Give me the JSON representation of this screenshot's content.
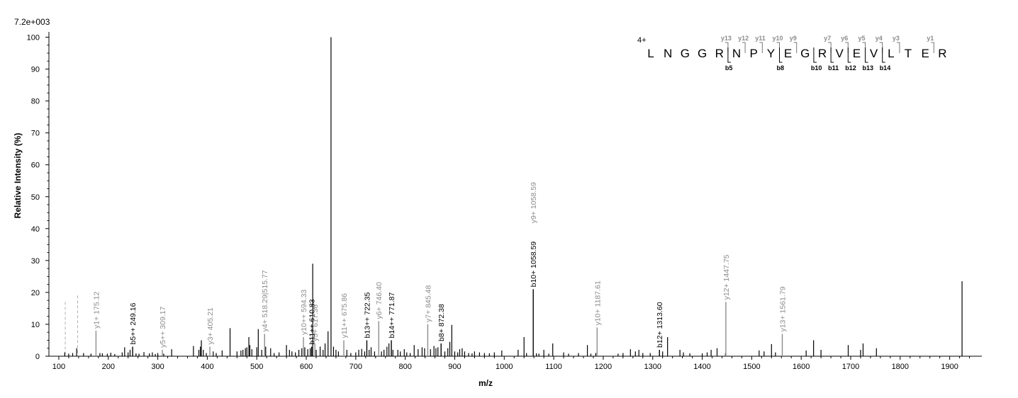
{
  "chart_data": {
    "type": "bar",
    "max_intensity_label": "7.2e+003",
    "xlabel": "m/z",
    "ylabel": "Relative   Intensity (%)",
    "xlim": [
      80,
      1965
    ],
    "ylim": [
      0,
      101
    ],
    "x_ticks": [
      100,
      200,
      300,
      400,
      500,
      600,
      700,
      800,
      900,
      1000,
      1100,
      1200,
      1300,
      1400,
      1500,
      1600,
      1700,
      1800,
      1900
    ],
    "y_ticks": [
      0,
      10,
      20,
      30,
      40,
      50,
      60,
      70,
      80,
      90,
      100
    ],
    "grid": false,
    "colors": {
      "b_ion": "#000000",
      "y_ion": "#8c8c8c",
      "unassigned": "#000000"
    },
    "annotated_peaks": [
      {
        "mz": 175.12,
        "intensity": 8,
        "label": "y1+ 175.12",
        "ion": "y"
      },
      {
        "mz": 249.16,
        "intensity": 3,
        "label": "b5++ 249.16",
        "ion": "b"
      },
      {
        "mz": 309.17,
        "intensity": 2,
        "label": "y5++ 309.17",
        "ion": "y"
      },
      {
        "mz": 405.21,
        "intensity": 3,
        "label": "y3+ 405.21",
        "ion": "y"
      },
      {
        "mz": 515.77,
        "intensity": 7,
        "label": "y4+ 518.29|515.77",
        "ion": "y"
      },
      {
        "mz": 594.33,
        "intensity": 6,
        "label": "y10++ 594.33",
        "ion": "y"
      },
      {
        "mz": 610.83,
        "intensity": 3,
        "label": "b11++ 610.83",
        "ion": "b"
      },
      {
        "mz": 617.36,
        "intensity": 4,
        "label": "y5+ 617.36",
        "ion": "y"
      },
      {
        "mz": 675.86,
        "intensity": 5,
        "label": "y11++ 675.86",
        "ion": "y"
      },
      {
        "mz": 722.35,
        "intensity": 5,
        "label": "b13++ 722.35",
        "ion": "b"
      },
      {
        "mz": 746.4,
        "intensity": 11,
        "label": "y6+ 746.40",
        "ion": "y"
      },
      {
        "mz": 771.87,
        "intensity": 5,
        "label": "b14++ 771.87",
        "ion": "b"
      },
      {
        "mz": 845.48,
        "intensity": 10,
        "label": "y7+ 845.48",
        "ion": "y"
      },
      {
        "mz": 872.38,
        "intensity": 4,
        "label": "b8+ 872.38",
        "ion": "b"
      },
      {
        "mz": 1058.59,
        "intensity": 21,
        "label": "b10+ 1058.59",
        "ion": "b"
      },
      {
        "mz": 1058.59,
        "intensity": 41,
        "label": "y9+ 1058.59",
        "ion": "y",
        "label_only": true
      },
      {
        "mz": 1187.61,
        "intensity": 9,
        "label": "y10+ 1187.61",
        "ion": "y"
      },
      {
        "mz": 1313.6,
        "intensity": 2,
        "label": "b12+ 1313.60",
        "ion": "b"
      },
      {
        "mz": 1447.75,
        "intensity": 17,
        "label": "y12+ 1447.75",
        "ion": "y"
      },
      {
        "mz": 1561.79,
        "intensity": 7,
        "label": "y13+ 1561.79",
        "ion": "y"
      }
    ],
    "unannotated_peaks": [
      [
        112,
        1.2
      ],
      [
        120,
        0.8
      ],
      [
        128,
        1.0
      ],
      [
        136,
        2.5
      ],
      [
        150,
        1.0
      ],
      [
        165,
        0.8
      ],
      [
        183,
        1.0
      ],
      [
        188,
        0.9
      ],
      [
        198,
        0.8
      ],
      [
        205,
        1.1
      ],
      [
        213,
        0.7
      ],
      [
        228,
        1.2
      ],
      [
        233,
        2.8
      ],
      [
        240,
        1.2
      ],
      [
        244,
        2.0
      ],
      [
        256,
        0.9
      ],
      [
        262,
        0.8
      ],
      [
        272,
        1.3
      ],
      [
        283,
        0.9
      ],
      [
        289,
        1.2
      ],
      [
        295,
        0.7
      ],
      [
        300,
        1.0
      ],
      [
        312,
        0.8
      ],
      [
        328,
        2.2
      ],
      [
        372,
        3.2
      ],
      [
        383,
        2.0
      ],
      [
        386,
        3.0
      ],
      [
        388,
        5.0
      ],
      [
        392,
        2.0
      ],
      [
        398,
        1.0
      ],
      [
        412,
        1.5
      ],
      [
        418,
        1.0
      ],
      [
        430,
        1.8
      ],
      [
        446,
        8.8
      ],
      [
        460,
        1.5
      ],
      [
        468,
        1.8
      ],
      [
        472,
        2.0
      ],
      [
        477,
        2.5
      ],
      [
        480,
        2.8
      ],
      [
        484,
        6.0
      ],
      [
        486,
        3.5
      ],
      [
        490,
        2.2
      ],
      [
        500,
        2.8
      ],
      [
        503,
        8.5
      ],
      [
        510,
        2.0
      ],
      [
        518,
        3.0
      ],
      [
        528,
        2.5
      ],
      [
        535,
        1.0
      ],
      [
        545,
        1.2
      ],
      [
        560,
        3.5
      ],
      [
        566,
        2.0
      ],
      [
        571,
        1.5
      ],
      [
        578,
        1.2
      ],
      [
        585,
        2.0
      ],
      [
        591,
        2.5
      ],
      [
        597,
        2.8
      ],
      [
        603,
        2.2
      ],
      [
        608,
        2.5
      ],
      [
        613,
        29.0
      ],
      [
        620,
        2.0
      ],
      [
        628,
        3.0
      ],
      [
        634,
        2.0
      ],
      [
        638,
        4.0
      ],
      [
        644,
        7.8
      ],
      [
        650,
        100.0
      ],
      [
        655,
        3.0
      ],
      [
        660,
        2.0
      ],
      [
        665,
        1.5
      ],
      [
        682,
        2.0
      ],
      [
        690,
        1.0
      ],
      [
        700,
        1.2
      ],
      [
        706,
        2.0
      ],
      [
        712,
        2.3
      ],
      [
        718,
        1.5
      ],
      [
        727,
        2.0
      ],
      [
        731,
        2.8
      ],
      [
        738,
        1.5
      ],
      [
        752,
        1.5
      ],
      [
        757,
        2.0
      ],
      [
        763,
        3.0
      ],
      [
        767,
        4.0
      ],
      [
        775,
        2.0
      ],
      [
        785,
        2.0
      ],
      [
        790,
        1.5
      ],
      [
        798,
        2.2
      ],
      [
        803,
        1.2
      ],
      [
        810,
        1.0
      ],
      [
        818,
        3.5
      ],
      [
        826,
        2.2
      ],
      [
        834,
        2.8
      ],
      [
        839,
        2.5
      ],
      [
        851,
        2.2
      ],
      [
        858,
        3.2
      ],
      [
        862,
        2.5
      ],
      [
        866,
        2.8
      ],
      [
        880,
        1.5
      ],
      [
        886,
        2.5
      ],
      [
        890,
        4.5
      ],
      [
        894,
        9.8
      ],
      [
        900,
        1.5
      ],
      [
        906,
        1.2
      ],
      [
        910,
        2.2
      ],
      [
        915,
        2.5
      ],
      [
        920,
        1.5
      ],
      [
        928,
        1.0
      ],
      [
        935,
        0.9
      ],
      [
        940,
        1.5
      ],
      [
        950,
        1.2
      ],
      [
        960,
        1.0
      ],
      [
        970,
        0.9
      ],
      [
        980,
        1.2
      ],
      [
        995,
        1.8
      ],
      [
        1028,
        2.0
      ],
      [
        1040,
        6.0
      ],
      [
        1045,
        1.0
      ],
      [
        1065,
        0.9
      ],
      [
        1070,
        0.8
      ],
      [
        1080,
        2.0
      ],
      [
        1090,
        0.8
      ],
      [
        1098,
        4.0
      ],
      [
        1120,
        1.2
      ],
      [
        1130,
        0.8
      ],
      [
        1150,
        1.0
      ],
      [
        1168,
        3.5
      ],
      [
        1175,
        0.8
      ],
      [
        1185,
        1.0
      ],
      [
        1230,
        0.8
      ],
      [
        1240,
        1.0
      ],
      [
        1255,
        2.2
      ],
      [
        1265,
        1.5
      ],
      [
        1272,
        2.0
      ],
      [
        1280,
        1.0
      ],
      [
        1295,
        1.0
      ],
      [
        1320,
        1.5
      ],
      [
        1330,
        6.0
      ],
      [
        1355,
        2.0
      ],
      [
        1362,
        1.2
      ],
      [
        1375,
        0.9
      ],
      [
        1400,
        0.9
      ],
      [
        1410,
        1.2
      ],
      [
        1418,
        2.0
      ],
      [
        1430,
        2.5
      ],
      [
        1447,
        1.0
      ],
      [
        1515,
        1.8
      ],
      [
        1525,
        1.5
      ],
      [
        1540,
        3.8
      ],
      [
        1548,
        1.2
      ],
      [
        1610,
        1.8
      ],
      [
        1625,
        5.0
      ],
      [
        1640,
        2.0
      ],
      [
        1695,
        3.5
      ],
      [
        1720,
        2.0
      ],
      [
        1725,
        4.0
      ],
      [
        1752,
        2.5
      ],
      [
        1925,
        23.5
      ]
    ],
    "reference_markers_dashed": [
      {
        "mz": 113,
        "intensity": 17
      },
      {
        "mz": 138,
        "intensity": 19
      }
    ],
    "sequence": {
      "charge_label": "4+",
      "residues": [
        "L",
        "N",
        "G",
        "G",
        "R",
        "N",
        "P",
        "Y",
        "E",
        "G",
        "R",
        "V",
        "E",
        "V",
        "L",
        "T",
        "E",
        "R"
      ],
      "y_ions": [
        {
          "after_index": 5,
          "name": "y13"
        },
        {
          "after_index": 6,
          "name": "y12"
        },
        {
          "after_index": 7,
          "name": "y11"
        },
        {
          "after_index": 8,
          "name": "y10"
        },
        {
          "after_index": 9,
          "name": "y9"
        },
        {
          "after_index": 11,
          "name": "y7"
        },
        {
          "after_index": 12,
          "name": "y6"
        },
        {
          "after_index": 13,
          "name": "y5"
        },
        {
          "after_index": 14,
          "name": "y4"
        },
        {
          "after_index": 15,
          "name": "y3"
        },
        {
          "after_index": 17,
          "name": "y1"
        }
      ],
      "b_ions": [
        {
          "after_index": 5,
          "name": "b5"
        },
        {
          "after_index": 8,
          "name": "b8"
        },
        {
          "after_index": 10,
          "name": "b10"
        },
        {
          "after_index": 11,
          "name": "b11"
        },
        {
          "after_index": 12,
          "name": "b12"
        },
        {
          "after_index": 13,
          "name": "b13"
        },
        {
          "after_index": 14,
          "name": "b14"
        }
      ]
    }
  }
}
